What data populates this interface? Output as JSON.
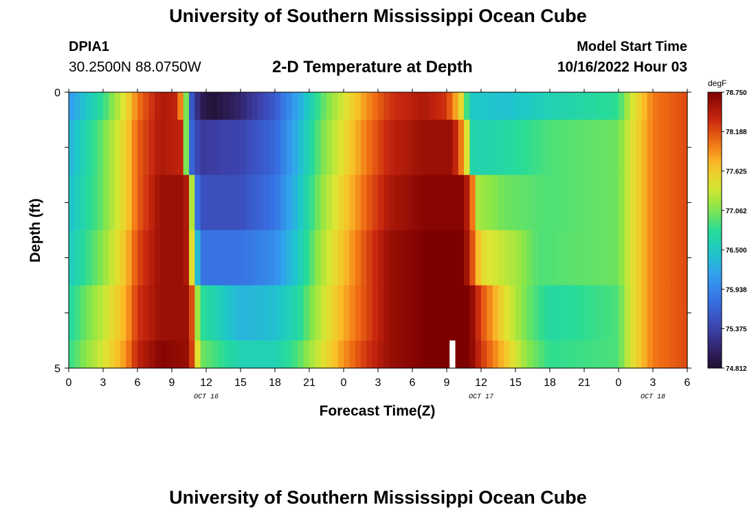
{
  "page": {
    "title": "University of Southern Mississippi Ocean Cube",
    "title_repeat": "University of Southern Mississippi Ocean Cube",
    "station_id": "DPIA1",
    "station_coords": "30.2500N  88.0750W",
    "model_start_label": "Model Start Time",
    "model_start_time": "10/16/2022 Hour 03"
  },
  "chart_data": {
    "type": "heatmap",
    "title": "2-D Temperature at Depth",
    "xlabel": "Forecast Time(Z)",
    "ylabel": "Depth (ft)",
    "units": "degF",
    "x_ticks": [
      "0",
      "3",
      "6",
      "9",
      "12",
      "15",
      "18",
      "21",
      "0",
      "3",
      "6",
      "9",
      "12",
      "15",
      "18",
      "21",
      "0",
      "3",
      "6"
    ],
    "date_labels": [
      {
        "label": "OCT 16",
        "hour": 12
      },
      {
        "label": "OCT 17",
        "hour": 36
      },
      {
        "label": "OCT 18",
        "hour": 51
      }
    ],
    "x_range_hours": [
      0,
      54
    ],
    "y_ticks": [
      "0",
      "5"
    ],
    "y_range": [
      0,
      5
    ],
    "depth_levels": [
      0,
      0.5,
      1.5,
      2.5,
      3.5,
      4.5,
      5
    ],
    "colorbar_ticks": [
      "78.750",
      "78.188",
      "77.625",
      "77.062",
      "76.500",
      "75.938",
      "75.375",
      "74.812"
    ],
    "color_range": [
      74.812,
      78.75
    ],
    "missing_hour": 33.5,
    "missing_layer": 5,
    "temperature_keyframes": [
      [
        [
          0,
          76.1
        ],
        [
          3,
          76.8
        ],
        [
          5,
          77.5
        ],
        [
          6,
          78.0
        ],
        [
          8,
          78.5
        ],
        [
          9.5,
          78.4
        ],
        [
          10.2,
          77.2
        ],
        [
          10.7,
          75.6
        ],
        [
          11.5,
          75.0
        ],
        [
          12.5,
          74.85
        ],
        [
          15,
          75.1
        ],
        [
          18,
          75.6
        ],
        [
          20,
          76.2
        ],
        [
          22,
          76.9
        ],
        [
          24,
          77.4
        ],
        [
          26,
          77.9
        ],
        [
          28,
          78.3
        ],
        [
          31,
          78.5
        ],
        [
          33,
          78.3
        ],
        [
          34.3,
          77.5
        ],
        [
          35,
          76.5
        ],
        [
          38,
          76.4
        ],
        [
          42,
          76.6
        ],
        [
          48,
          76.8
        ],
        [
          49,
          77.3
        ],
        [
          51,
          78.0
        ],
        [
          54,
          78.2
        ]
      ],
      [
        [
          0,
          76.3
        ],
        [
          3,
          77.0
        ],
        [
          5,
          77.6
        ],
        [
          6,
          78.1
        ],
        [
          8,
          78.5
        ],
        [
          9.8,
          78.4
        ],
        [
          10.2,
          77.2
        ],
        [
          10.7,
          75.7
        ],
        [
          11.5,
          75.3
        ],
        [
          15,
          75.4
        ],
        [
          18,
          75.7
        ],
        [
          20,
          76.3
        ],
        [
          22,
          77.0
        ],
        [
          24,
          77.5
        ],
        [
          26,
          78.0
        ],
        [
          28,
          78.4
        ],
        [
          31,
          78.6
        ],
        [
          33.5,
          78.6
        ],
        [
          34.5,
          77.8
        ],
        [
          35.3,
          76.6
        ],
        [
          38,
          76.7
        ],
        [
          42,
          76.9
        ],
        [
          48,
          77.0
        ],
        [
          49,
          77.4
        ],
        [
          51,
          78.0
        ],
        [
          54,
          78.2
        ]
      ],
      [
        [
          0,
          76.4
        ],
        [
          3,
          77.0
        ],
        [
          5,
          77.6
        ],
        [
          6,
          78.1
        ],
        [
          8,
          78.6
        ],
        [
          10.2,
          78.6
        ],
        [
          10.7,
          77.5
        ],
        [
          11,
          76.0
        ],
        [
          11.5,
          75.5
        ],
        [
          15,
          75.5
        ],
        [
          18,
          75.8
        ],
        [
          20,
          76.4
        ],
        [
          22,
          77.1
        ],
        [
          24,
          77.6
        ],
        [
          26,
          78.1
        ],
        [
          28,
          78.5
        ],
        [
          31,
          78.7
        ],
        [
          34.5,
          78.7
        ],
        [
          35.2,
          78.1
        ],
        [
          35.7,
          77.2
        ],
        [
          38,
          77.0
        ],
        [
          42,
          76.9
        ],
        [
          48,
          77.0
        ],
        [
          49,
          77.4
        ],
        [
          51,
          78.0
        ],
        [
          54,
          78.2
        ]
      ],
      [
        [
          0,
          76.5
        ],
        [
          3,
          77.1
        ],
        [
          5,
          77.7
        ],
        [
          6,
          78.2
        ],
        [
          8,
          78.6
        ],
        [
          10.2,
          78.6
        ],
        [
          10.7,
          77.6
        ],
        [
          11.2,
          76.4
        ],
        [
          11.7,
          75.8
        ],
        [
          15,
          75.8
        ],
        [
          18,
          76.0
        ],
        [
          20,
          76.5
        ],
        [
          22,
          77.2
        ],
        [
          24,
          77.7
        ],
        [
          26,
          78.2
        ],
        [
          28,
          78.6
        ],
        [
          31,
          78.75
        ],
        [
          34.5,
          78.75
        ],
        [
          35.2,
          78.2
        ],
        [
          36,
          77.5
        ],
        [
          39,
          77.2
        ],
        [
          41,
          76.9
        ],
        [
          48,
          77.0
        ],
        [
          49,
          77.4
        ],
        [
          51,
          78.0
        ],
        [
          54,
          78.2
        ]
      ],
      [
        [
          0,
          76.7
        ],
        [
          3,
          77.3
        ],
        [
          5,
          77.8
        ],
        [
          6,
          78.3
        ],
        [
          8,
          78.6
        ],
        [
          10.6,
          78.6
        ],
        [
          11,
          77.5
        ],
        [
          11.5,
          76.8
        ],
        [
          15,
          76.3
        ],
        [
          18,
          76.4
        ],
        [
          20,
          76.7
        ],
        [
          22,
          77.3
        ],
        [
          24,
          77.8
        ],
        [
          26,
          78.2
        ],
        [
          28,
          78.6
        ],
        [
          31,
          78.75
        ],
        [
          35,
          78.75
        ],
        [
          36,
          78.2
        ],
        [
          38,
          77.5
        ],
        [
          40,
          77.0
        ],
        [
          42,
          76.7
        ],
        [
          48,
          76.9
        ],
        [
          49,
          77.4
        ],
        [
          51,
          78.0
        ],
        [
          54,
          78.2
        ]
      ],
      [
        [
          0,
          76.8
        ],
        [
          3,
          77.4
        ],
        [
          5,
          77.9
        ],
        [
          6,
          78.4
        ],
        [
          8,
          78.7
        ],
        [
          10.6,
          78.6
        ],
        [
          11,
          77.7
        ],
        [
          11.7,
          77.0
        ],
        [
          15,
          76.6
        ],
        [
          18,
          76.6
        ],
        [
          20,
          76.9
        ],
        [
          22,
          77.4
        ],
        [
          24,
          77.9
        ],
        [
          26,
          78.3
        ],
        [
          28,
          78.6
        ],
        [
          31,
          78.75
        ],
        [
          35,
          78.75
        ],
        [
          36,
          78.3
        ],
        [
          38,
          77.7
        ],
        [
          40,
          77.1
        ],
        [
          42,
          76.8
        ],
        [
          48,
          76.9
        ],
        [
          49,
          77.4
        ],
        [
          51,
          78.0
        ],
        [
          54,
          78.2
        ]
      ]
    ]
  }
}
